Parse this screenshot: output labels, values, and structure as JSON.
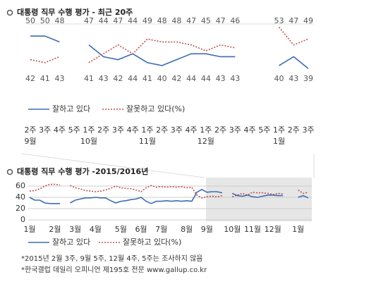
{
  "chart_data": [
    {
      "type": "line",
      "title": "대통령 직무 수행 평가 - 최근 20주",
      "categories": [
        "2주",
        "3주",
        "4주",
        "5주",
        "1주",
        "2주",
        "3주",
        "4주",
        "1주",
        "2주",
        "3주",
        "4주",
        "1주",
        "2주",
        "3주",
        "4주",
        "5주",
        "1주",
        "2주",
        "3주"
      ],
      "month_labels": [
        "9월",
        null,
        null,
        null,
        "10월",
        null,
        null,
        null,
        "11월",
        null,
        null,
        null,
        "12월",
        null,
        null,
        null,
        null,
        "1월",
        null,
        null
      ],
      "series": [
        {
          "name": "잘하고 있다",
          "color": "#3b6db3",
          "line_style": "solid",
          "values": [
            50,
            50,
            48,
            null,
            47,
            43,
            42,
            44,
            41,
            40,
            42,
            44,
            44,
            43,
            43,
            null,
            null,
            40,
            43,
            39
          ]
        },
        {
          "name": "잘못하고 있다(%)",
          "color": "#c0504d",
          "line_style": "dotted",
          "values": [
            42,
            41,
            43,
            null,
            41,
            44,
            47,
            44,
            49,
            48,
            48,
            47,
            45,
            47,
            46,
            null,
            null,
            53,
            47,
            49
          ]
        }
      ],
      "ylim": [
        35,
        56
      ],
      "show_values": true,
      "grid": false
    },
    {
      "type": "line",
      "title": "대통령 직무 수행 평가 -2015/2016년",
      "categories": [
        "1월",
        null,
        null,
        null,
        null,
        "2월",
        null,
        null,
        null,
        "3월",
        null,
        null,
        null,
        "4월",
        null,
        null,
        null,
        null,
        "5월",
        null,
        null,
        null,
        "6월",
        null,
        null,
        null,
        "7월",
        null,
        null,
        null,
        null,
        "8월",
        null,
        null,
        null,
        "9월",
        null,
        null,
        null,
        null,
        "10월",
        null,
        null,
        null,
        "11월",
        null,
        null,
        null,
        "12월",
        null,
        null,
        null,
        null,
        "1월",
        null,
        null
      ],
      "series": [
        {
          "name": "잘하고 있다",
          "color": "#3b6db3",
          "line_style": "solid",
          "values": [
            40,
            35,
            35,
            30,
            29,
            29,
            29,
            null,
            30,
            35,
            37,
            39,
            39,
            40,
            39,
            39,
            34,
            30,
            33,
            34,
            36,
            37,
            40,
            33,
            29,
            33,
            33,
            34,
            33,
            34,
            33,
            34,
            33,
            49,
            54,
            49,
            50,
            50,
            48,
            null,
            47,
            43,
            42,
            44,
            41,
            40,
            42,
            44,
            44,
            43,
            43,
            null,
            null,
            40,
            43,
            39
          ]
        },
        {
          "name": "잘못하고 있다(%)",
          "color": "#c0504d",
          "line_style": "dotted",
          "values": [
            51,
            52,
            55,
            60,
            63,
            63,
            62,
            null,
            61,
            57,
            55,
            52,
            51,
            50,
            51,
            53,
            56,
            60,
            57,
            56,
            55,
            53,
            50,
            57,
            61,
            58,
            59,
            58,
            59,
            58,
            59,
            57,
            58,
            44,
            39,
            41,
            42,
            41,
            43,
            null,
            41,
            44,
            47,
            44,
            49,
            48,
            48,
            47,
            45,
            47,
            46,
            null,
            null,
            53,
            47,
            49
          ]
        }
      ],
      "ylim": [
        0,
        70
      ],
      "yticks": [
        0,
        20,
        40,
        60
      ],
      "show_values": false,
      "grid": true
    }
  ],
  "notes": [
    "*2015년 2월 3주, 9월 5주, 12월 4주, 5주는 조사하지 않음",
    "*한국갤럽 데일리 오피니언 제195호 전문 www.gallup.co.kr"
  ]
}
